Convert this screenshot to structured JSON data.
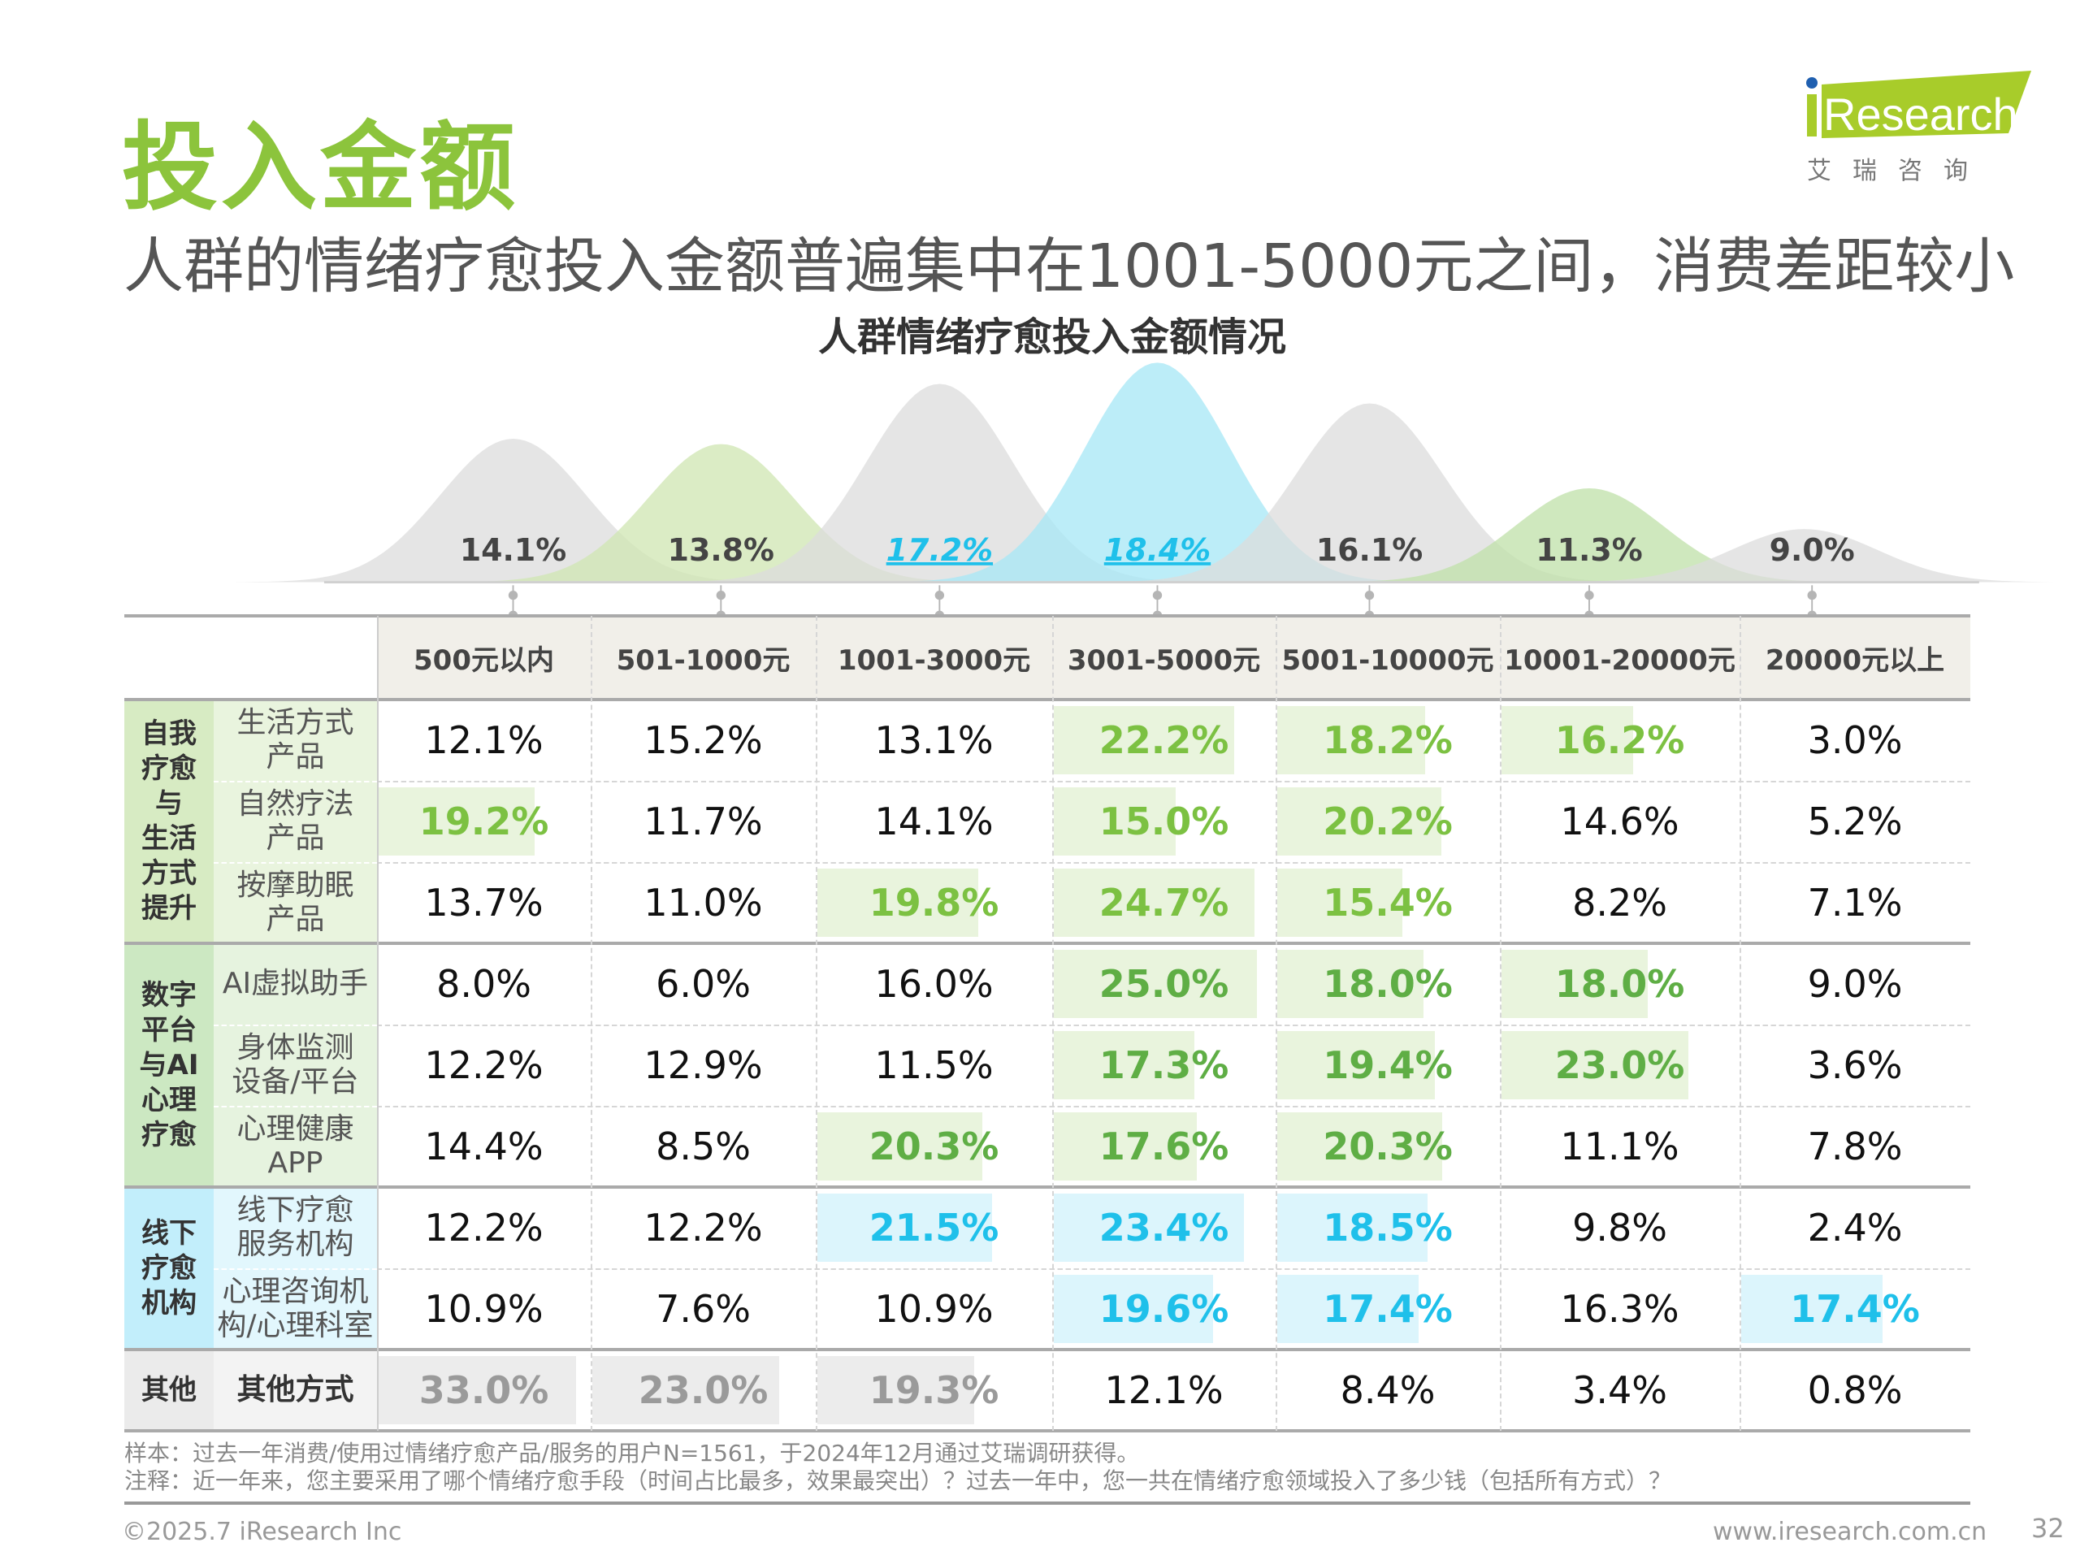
{
  "title": "投入金额",
  "subtitle": "人群的情绪疗愈投入金额普遍集中在1001-5000元之间，消费差距较小",
  "chart_data": {
    "type": "area",
    "title": "人群情绪疗愈投入金额情况",
    "categories": [
      "500元以内",
      "501-1000元",
      "1001-3000元",
      "3001-5000元",
      "5001-10000元",
      "10001-20000元",
      "20000元以上"
    ],
    "values": [
      14.1,
      13.8,
      17.2,
      18.4,
      16.1,
      11.3,
      9.0
    ],
    "labels": [
      "14.1%",
      "13.8%",
      "17.2%",
      "18.4%",
      "16.1%",
      "11.3%",
      "9.0%"
    ],
    "colors": [
      "#dcdcdc",
      "#cfe6b2",
      "#dcdcdc",
      "#a6e7f6",
      "#dcdcdc",
      "#bfe0a8",
      "#dcdcdc"
    ],
    "highlighted": [
      false,
      false,
      true,
      true,
      false,
      false,
      false
    ]
  },
  "colors": {
    "title_green": "#8cc43c",
    "green_text": "#7cc142",
    "green_dark_text": "#5fae45",
    "green_bg": "#e9f4dd",
    "blue_text": "#1fc0ea",
    "blue_bg": "#dcf5fc",
    "gray_text": "#9a9a9a",
    "gray_bg": "#ececec"
  },
  "table": {
    "columns": [
      "500元以内",
      "501-1000元",
      "1001-3000元",
      "3001-5000元",
      "5001-10000元",
      "10001-20000元",
      "20000元以上"
    ],
    "groups": [
      {
        "label": "自我\n疗愈\n与\n生活\n方式\n提升",
        "theme": "green",
        "rows": [
          {
            "label": "生活方式\n产品",
            "values": [
              "12.1%",
              "15.2%",
              "13.1%",
              "22.2%",
              "18.2%",
              "16.2%",
              "3.0%"
            ],
            "highlight": [
              false,
              false,
              false,
              true,
              true,
              true,
              false
            ]
          },
          {
            "label": "自然疗法\n产品",
            "values": [
              "19.2%",
              "11.7%",
              "14.1%",
              "15.0%",
              "20.2%",
              "14.6%",
              "5.2%"
            ],
            "highlight": [
              true,
              false,
              false,
              true,
              true,
              false,
              false
            ]
          },
          {
            "label": "按摩助眠\n产品",
            "values": [
              "13.7%",
              "11.0%",
              "19.8%",
              "24.7%",
              "15.4%",
              "8.2%",
              "7.1%"
            ],
            "highlight": [
              false,
              false,
              true,
              true,
              true,
              false,
              false
            ]
          }
        ]
      },
      {
        "label": "数字\n平台\n与AI\n心理\n疗愈",
        "theme": "green2",
        "rows": [
          {
            "label": "AI虚拟助手",
            "values": [
              "8.0%",
              "6.0%",
              "16.0%",
              "25.0%",
              "18.0%",
              "18.0%",
              "9.0%"
            ],
            "highlight": [
              false,
              false,
              false,
              true,
              true,
              true,
              false
            ]
          },
          {
            "label": "身体监测\n设备/平台",
            "values": [
              "12.2%",
              "12.9%",
              "11.5%",
              "17.3%",
              "19.4%",
              "23.0%",
              "3.6%"
            ],
            "highlight": [
              false,
              false,
              false,
              true,
              true,
              true,
              false
            ]
          },
          {
            "label": "心理健康\nAPP",
            "values": [
              "14.4%",
              "8.5%",
              "20.3%",
              "17.6%",
              "20.3%",
              "11.1%",
              "7.8%"
            ],
            "highlight": [
              false,
              false,
              true,
              true,
              true,
              false,
              false
            ]
          }
        ]
      },
      {
        "label": "线下\n疗愈\n机构",
        "theme": "blue",
        "rows": [
          {
            "label": "线下疗愈\n服务机构",
            "values": [
              "12.2%",
              "12.2%",
              "21.5%",
              "23.4%",
              "18.5%",
              "9.8%",
              "2.4%"
            ],
            "highlight": [
              false,
              false,
              true,
              true,
              true,
              false,
              false
            ]
          },
          {
            "label": "心理咨询机\n构/心理科室",
            "values": [
              "10.9%",
              "7.6%",
              "10.9%",
              "19.6%",
              "17.4%",
              "16.3%",
              "17.4%"
            ],
            "highlight": [
              false,
              false,
              false,
              true,
              true,
              false,
              true
            ]
          }
        ]
      },
      {
        "label": "其他",
        "theme": "gray",
        "rows": [
          {
            "label": "其他方式",
            "values": [
              "33.0%",
              "23.0%",
              "19.3%",
              "12.1%",
              "8.4%",
              "3.4%",
              "0.8%"
            ],
            "highlight": [
              true,
              true,
              true,
              false,
              false,
              false,
              false
            ]
          }
        ]
      }
    ]
  },
  "notes": {
    "sample": "样本：过去一年消费/使用过情绪疗愈产品/服务的用户N=1561，于2024年12月通过艾瑞调研获得。",
    "remark": "注释：近一年来，您主要采用了哪个情绪疗愈手段（时间占比最多，效果最突出）？过去一年中，您一共在情绪疗愈领域投入了多少钱（包括所有方式）？"
  },
  "footer": {
    "copyright": "©2025.7 iResearch Inc",
    "website": "www.iresearch.com.cn",
    "page": "32"
  },
  "logo": {
    "text": "iResearch",
    "cn": "艾 瑞 咨 询"
  }
}
